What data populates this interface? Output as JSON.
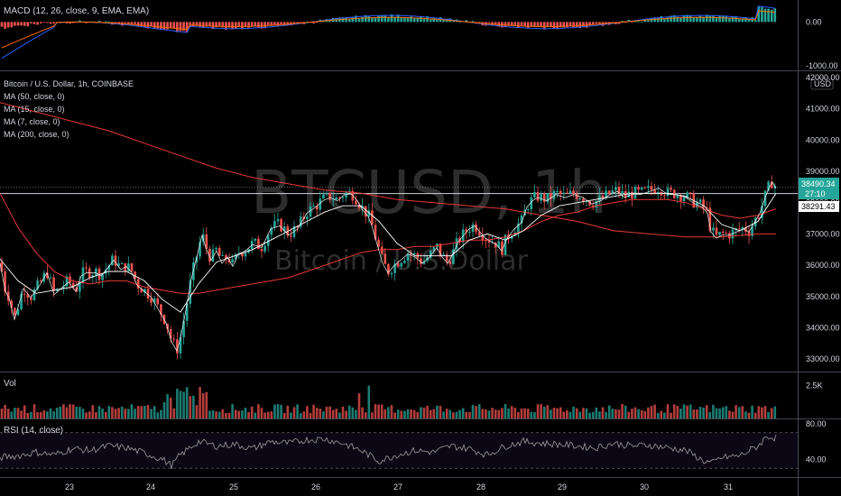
{
  "header": {
    "macd_label": "MACD (12, 26, close, 9, EMA, EMA)",
    "symbol_title": "Bitcoin / U.S. Dollar, 1h, COINBASE",
    "ma_labels": [
      "MA (50, close, 0)",
      "MA (15, close, 0)",
      "MA (7, close, 0)",
      "MA (200, close, 0)"
    ],
    "vol_label": "Vol",
    "rsi_label": "RSI (14, close)",
    "currency": "USD"
  },
  "watermark": {
    "ticker": "BTCUSD, 1h",
    "name": "Bitcoin / U.S.Dollar"
  },
  "price_tags": {
    "last": "38490.34",
    "countdown": "27:10",
    "line": "38291.43"
  },
  "colors": {
    "up": "#26a69a",
    "down": "#ef5350",
    "ma_red": "#e53935",
    "ma_white": "#ffffff",
    "macd_line": "#2962ff",
    "signal_line": "#ff6d00",
    "rsi_line": "#9e9e9e"
  },
  "chart_data": [
    {
      "type": "candlestick",
      "title": "Bitcoin / U.S. Dollar, 1h, COINBASE",
      "x_ticks": [
        "23",
        "24",
        "25",
        "26",
        "27",
        "28",
        "29",
        "30",
        "31"
      ],
      "y_ticks": [
        "42000.00",
        "41000.00",
        "40000.00",
        "39000.00",
        "38000.00",
        "37000.00",
        "36000.00",
        "35000.00",
        "34000.00",
        "33000.00"
      ],
      "ylim": [
        32600,
        42200
      ],
      "close_path": [
        [
          0,
          36100
        ],
        [
          6,
          35200
        ],
        [
          10,
          35000
        ],
        [
          16,
          34300
        ],
        [
          26,
          35300
        ],
        [
          34,
          35000
        ],
        [
          44,
          35400
        ],
        [
          52,
          35800
        ],
        [
          60,
          35100
        ],
        [
          68,
          35300
        ],
        [
          76,
          35500
        ],
        [
          84,
          35200
        ],
        [
          90,
          35700
        ],
        [
          96,
          35800
        ],
        [
          106,
          35800
        ],
        [
          112,
          35700
        ],
        [
          118,
          35900
        ],
        [
          126,
          36200
        ],
        [
          134,
          35900
        ],
        [
          140,
          36000
        ],
        [
          146,
          35800
        ],
        [
          152,
          35400
        ],
        [
          160,
          35200
        ],
        [
          168,
          35000
        ],
        [
          176,
          34600
        ],
        [
          184,
          34200
        ],
        [
          190,
          33600
        ],
        [
          196,
          33300
        ],
        [
          200,
          33700
        ],
        [
          206,
          34600
        ],
        [
          212,
          35600
        ],
        [
          218,
          36300
        ],
        [
          224,
          37000
        ],
        [
          228,
          36600
        ],
        [
          234,
          36200
        ],
        [
          240,
          36500
        ],
        [
          246,
          36100
        ],
        [
          252,
          36300
        ],
        [
          258,
          36000
        ],
        [
          264,
          36400
        ],
        [
          272,
          36500
        ],
        [
          280,
          36700
        ],
        [
          290,
          36600
        ],
        [
          300,
          37200
        ],
        [
          310,
          37300
        ],
        [
          320,
          37000
        ],
        [
          330,
          37200
        ],
        [
          340,
          37700
        ],
        [
          350,
          37900
        ],
        [
          358,
          38100
        ],
        [
          366,
          38200
        ],
        [
          374,
          38100
        ],
        [
          382,
          38300
        ],
        [
          390,
          38300
        ],
        [
          396,
          38100
        ],
        [
          402,
          37800
        ],
        [
          408,
          37600
        ],
        [
          412,
          37300
        ],
        [
          418,
          36700
        ],
        [
          424,
          36100
        ],
        [
          430,
          35800
        ],
        [
          436,
          36000
        ],
        [
          444,
          36200
        ],
        [
          452,
          36400
        ],
        [
          460,
          36300
        ],
        [
          468,
          36100
        ],
        [
          476,
          36300
        ],
        [
          484,
          36600
        ],
        [
          490,
          36300
        ],
        [
          496,
          36100
        ],
        [
          502,
          36400
        ],
        [
          508,
          36800
        ],
        [
          514,
          37000
        ],
        [
          520,
          37200
        ],
        [
          526,
          37300
        ],
        [
          532,
          37100
        ],
        [
          538,
          36900
        ],
        [
          544,
          36800
        ],
        [
          550,
          36700
        ],
        [
          556,
          36500
        ],
        [
          562,
          36900
        ],
        [
          570,
          37200
        ],
        [
          578,
          37400
        ],
        [
          584,
          37900
        ],
        [
          590,
          38100
        ],
        [
          596,
          38200
        ],
        [
          606,
          38100
        ],
        [
          616,
          38300
        ],
        [
          626,
          38200
        ],
        [
          636,
          38300
        ],
        [
          646,
          38200
        ],
        [
          656,
          38000
        ],
        [
          666,
          38100
        ],
        [
          676,
          38300
        ],
        [
          684,
          38400
        ],
        [
          692,
          38200
        ],
        [
          700,
          38300
        ],
        [
          710,
          38300
        ],
        [
          720,
          38400
        ],
        [
          730,
          38500
        ],
        [
          740,
          38300
        ],
        [
          750,
          38300
        ],
        [
          760,
          38200
        ],
        [
          770,
          38000
        ],
        [
          778,
          37900
        ],
        [
          784,
          37700
        ],
        [
          788,
          37100
        ],
        [
          794,
          36900
        ],
        [
          800,
          37000
        ],
        [
          808,
          37000
        ],
        [
          816,
          37100
        ],
        [
          824,
          37200
        ],
        [
          830,
          37100
        ],
        [
          836,
          37400
        ],
        [
          842,
          37700
        ],
        [
          848,
          38200
        ],
        [
          852,
          38500
        ],
        [
          856,
          38700
        ],
        [
          860,
          38490
        ]
      ],
      "ma_red_path": [
        [
          0,
          38300
        ],
        [
          20,
          37200
        ],
        [
          40,
          36400
        ],
        [
          60,
          35800
        ],
        [
          80,
          35500
        ],
        [
          100,
          35400
        ],
        [
          120,
          35500
        ],
        [
          140,
          35500
        ],
        [
          160,
          35300
        ],
        [
          180,
          35200
        ],
        [
          200,
          35100
        ],
        [
          220,
          35100
        ],
        [
          240,
          35200
        ],
        [
          260,
          35300
        ],
        [
          280,
          35400
        ],
        [
          300,
          35500
        ],
        [
          320,
          35600
        ],
        [
          340,
          35800
        ],
        [
          360,
          36000
        ],
        [
          380,
          36200
        ],
        [
          400,
          36400
        ],
        [
          420,
          36500
        ],
        [
          440,
          36500
        ],
        [
          460,
          36600
        ],
        [
          480,
          36600
        ],
        [
          500,
          36700
        ],
        [
          520,
          36800
        ],
        [
          540,
          36800
        ],
        [
          560,
          36900
        ],
        [
          580,
          37100
        ],
        [
          600,
          37400
        ],
        [
          620,
          37600
        ],
        [
          640,
          37700
        ],
        [
          660,
          37900
        ],
        [
          680,
          38000
        ],
        [
          700,
          38100
        ],
        [
          720,
          38100
        ],
        [
          740,
          38100
        ],
        [
          760,
          38000
        ],
        [
          780,
          37800
        ],
        [
          800,
          37600
        ],
        [
          820,
          37500
        ],
        [
          840,
          37600
        ],
        [
          860,
          37800
        ]
      ],
      "ma200_path": [
        [
          0,
          41200
        ],
        [
          40,
          40900
        ],
        [
          80,
          40600
        ],
        [
          120,
          40300
        ],
        [
          160,
          39900
        ],
        [
          200,
          39500
        ],
        [
          240,
          39100
        ],
        [
          280,
          38800
        ],
        [
          320,
          38600
        ],
        [
          360,
          38400
        ],
        [
          400,
          38300
        ],
        [
          440,
          38100
        ],
        [
          480,
          38000
        ],
        [
          520,
          37900
        ],
        [
          560,
          37800
        ],
        [
          600,
          37600
        ],
        [
          640,
          37400
        ],
        [
          680,
          37100
        ],
        [
          720,
          37000
        ],
        [
          760,
          36900
        ],
        [
          800,
          36900
        ],
        [
          840,
          37000
        ],
        [
          860,
          37000
        ]
      ],
      "ma15_path": [
        [
          0,
          36200
        ],
        [
          20,
          35500
        ],
        [
          40,
          35100
        ],
        [
          60,
          35200
        ],
        [
          80,
          35300
        ],
        [
          100,
          35600
        ],
        [
          120,
          35800
        ],
        [
          140,
          35800
        ],
        [
          160,
          35500
        ],
        [
          180,
          34900
        ],
        [
          200,
          34500
        ],
        [
          220,
          35400
        ],
        [
          240,
          36100
        ],
        [
          260,
          36300
        ],
        [
          280,
          36500
        ],
        [
          300,
          36800
        ],
        [
          320,
          37100
        ],
        [
          340,
          37400
        ],
        [
          360,
          37700
        ],
        [
          380,
          37900
        ],
        [
          400,
          37900
        ],
        [
          420,
          37400
        ],
        [
          440,
          36700
        ],
        [
          460,
          36300
        ],
        [
          480,
          36300
        ],
        [
          500,
          36300
        ],
        [
          520,
          36800
        ],
        [
          540,
          37000
        ],
        [
          560,
          36800
        ],
        [
          580,
          37100
        ],
        [
          600,
          37600
        ],
        [
          620,
          37900
        ],
        [
          640,
          38000
        ],
        [
          660,
          38100
        ],
        [
          680,
          38200
        ],
        [
          700,
          38300
        ],
        [
          720,
          38300
        ],
        [
          740,
          38300
        ],
        [
          760,
          38200
        ],
        [
          780,
          37900
        ],
        [
          800,
          37300
        ],
        [
          820,
          37100
        ],
        [
          840,
          37400
        ],
        [
          860,
          38300
        ]
      ]
    },
    {
      "type": "bar",
      "title": "Vol",
      "y_ticks": [
        "2.5K"
      ],
      "ylim": [
        0,
        3500
      ]
    },
    {
      "type": "line",
      "title": "RSI (14, close)",
      "y_ticks": [
        "80.00",
        "40.00"
      ],
      "ylim": [
        20,
        85
      ],
      "bands": [
        70,
        30
      ],
      "x": [
        0,
        20,
        40,
        60,
        80,
        100,
        120,
        140,
        160,
        180,
        190,
        200,
        220,
        240,
        260,
        280,
        300,
        320,
        340,
        360,
        380,
        400,
        420,
        440,
        460,
        480,
        500,
        520,
        540,
        560,
        580,
        600,
        620,
        640,
        660,
        680,
        700,
        720,
        740,
        760,
        780,
        790,
        800,
        820,
        840,
        850,
        860
      ],
      "values": [
        42,
        44,
        48,
        45,
        52,
        50,
        55,
        53,
        47,
        40,
        33,
        45,
        60,
        55,
        57,
        52,
        60,
        58,
        62,
        63,
        58,
        50,
        38,
        45,
        50,
        48,
        55,
        52,
        45,
        55,
        60,
        58,
        57,
        55,
        53,
        58,
        55,
        56,
        53,
        50,
        38,
        36,
        42,
        44,
        55,
        66,
        64
      ]
    },
    {
      "type": "bar",
      "title": "MACD (12, 26, close, 9, EMA, EMA)",
      "y_ticks": [
        "0.00",
        "-1000.00"
      ],
      "ylim": [
        -1100,
        500
      ]
    }
  ]
}
